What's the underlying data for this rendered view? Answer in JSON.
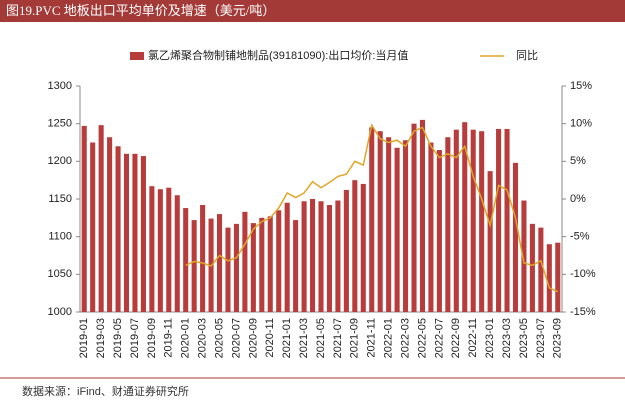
{
  "chart_data": {
    "type": "bar_line",
    "title": "图19.PVC 地板出口平均单价及增速（美元/吨）",
    "source": "数据来源：iFind、财通证券研究所",
    "categories": [
      "2019-01",
      null,
      "2019-03",
      null,
      "2019-05",
      null,
      "2019-07",
      null,
      "2019-09",
      null,
      "2019-11",
      null,
      "2020-01",
      null,
      "2020-03",
      null,
      "2020-05",
      null,
      "2020-07",
      null,
      "2020-09",
      null,
      "2020-11",
      null,
      "2021-01",
      null,
      "2021-03",
      null,
      "2021-05",
      null,
      "2021-07",
      null,
      "2021-09",
      null,
      "2021-11",
      null,
      "2022-01",
      null,
      "2022-03",
      null,
      "2022-05",
      null,
      "2022-07",
      null,
      "2022-09",
      null,
      "2022-11",
      null,
      "2023-01",
      null,
      "2023-03",
      null,
      "2023-05",
      null,
      "2023-07",
      null,
      "2023-09"
    ],
    "series": [
      {
        "name": "氯乙烯聚合物制铺地制品(39181090):出口均价:当月值",
        "type": "bar",
        "color": "#b83c3c",
        "values": [
          1247,
          1225,
          1248,
          1232,
          1220,
          1210,
          1210,
          1207,
          1167,
          1163,
          1165,
          1155,
          1138,
          1122,
          1142,
          1124,
          1130,
          1112,
          1117,
          1133,
          1118,
          1125,
          1127,
          1135,
          1145,
          1122,
          1147,
          1150,
          1147,
          1142,
          1148,
          1162,
          1175,
          1170,
          1245,
          1240,
          1232,
          1218,
          1228,
          1250,
          1255,
          1225,
          1215,
          1232,
          1242,
          1252,
          1242,
          1240,
          1187,
          1243,
          1243,
          1198,
          1148,
          1117,
          1112,
          1090,
          1092
        ]
      },
      {
        "name": "同比",
        "type": "line",
        "axis": "y2",
        "color": "#e0a526",
        "values": [
          null,
          null,
          null,
          null,
          null,
          null,
          null,
          null,
          null,
          null,
          null,
          null,
          -8.8,
          -8.3,
          -8.5,
          -8.9,
          -7.5,
          -8.2,
          -7.8,
          -6.0,
          -4.0,
          -3.0,
          -2.5,
          -1.2,
          0.8,
          0.2,
          0.8,
          2.3,
          1.5,
          2.2,
          3.0,
          3.3,
          5.0,
          4.5,
          9.8,
          8.0,
          7.5,
          7.8,
          7.0,
          9.0,
          9.5,
          7.0,
          5.5,
          6.0,
          5.5,
          7.0,
          3.0,
          0,
          -3.5,
          1.8,
          1.2,
          -2.5,
          -8.5,
          -8.8,
          -8.2,
          -11.8,
          -12.3
        ]
      }
    ],
    "ylim": [
      1000,
      1300
    ],
    "yticks": [
      1000,
      1050,
      1100,
      1150,
      1200,
      1250,
      1300
    ],
    "y2lim": [
      -15,
      15
    ],
    "y2ticks": [
      {
        "value": -15,
        "label": "-15%"
      },
      {
        "value": -10,
        "label": "-10%"
      },
      {
        "value": -5,
        "label": "-5%"
      },
      {
        "value": 0,
        "label": "0%"
      },
      {
        "value": 5,
        "label": "5%"
      },
      {
        "value": 10,
        "label": "10%"
      },
      {
        "value": 15,
        "label": "15%"
      }
    ],
    "legend": "top"
  }
}
